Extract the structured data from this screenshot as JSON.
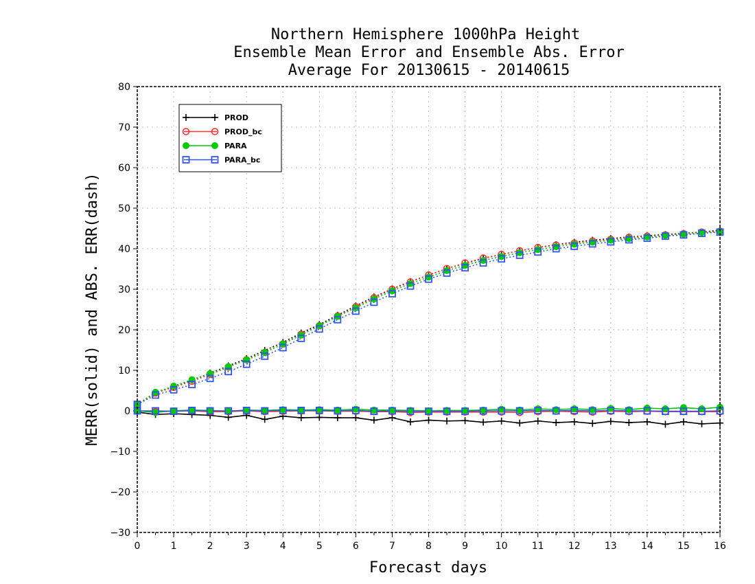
{
  "chart_data": {
    "type": "line",
    "title": [
      "Northern Hemisphere 1000hPa Height",
      "Ensemble Mean Error and Ensemble Abs. Error",
      "Average For 20130615 - 20140615"
    ],
    "xlabel": "Forecast days",
    "ylabel": "MERR(solid) and ABS. ERR(dash)",
    "xlim": [
      0,
      16
    ],
    "ylim": [
      -30,
      80
    ],
    "xticks": [
      0,
      1,
      2,
      3,
      4,
      5,
      6,
      7,
      8,
      9,
      10,
      11,
      12,
      13,
      14,
      15,
      16
    ],
    "yticks": [
      -30,
      -20,
      -10,
      0,
      10,
      20,
      30,
      40,
      50,
      60,
      70,
      80
    ],
    "grid": true,
    "legend_position": "top-left",
    "x": [
      0,
      0.5,
      1,
      1.5,
      2,
      2.5,
      3,
      3.5,
      4,
      4.5,
      5,
      5.5,
      6,
      6.5,
      7,
      7.5,
      8,
      8.5,
      9,
      9.5,
      10,
      10.5,
      11,
      11.5,
      12,
      12.5,
      13,
      13.5,
      14,
      14.5,
      15,
      15.5,
      16
    ],
    "series": [
      {
        "name": "PROD",
        "color": "#000000",
        "marker": "plus",
        "merr": [
          -0.3,
          -0.9,
          -0.7,
          -0.9,
          -1.1,
          -1.6,
          -1.1,
          -2.1,
          -1.3,
          -1.7,
          -1.6,
          -1.7,
          -1.7,
          -2.3,
          -1.7,
          -2.7,
          -2.3,
          -2.5,
          -2.4,
          -2.8,
          -2.5,
          -3.0,
          -2.5,
          -2.9,
          -2.7,
          -3.1,
          -2.6,
          -2.9,
          -2.7,
          -3.3,
          -2.7,
          -3.2,
          -3.0
        ],
        "abs_err": [
          1.6,
          4.5,
          6.0,
          7.6,
          9.3,
          11.1,
          12.9,
          14.9,
          16.9,
          19.2,
          21.3,
          23.6,
          25.9,
          28.1,
          30.1,
          31.9,
          33.5,
          35.1,
          36.4,
          37.6,
          38.6,
          39.5,
          40.3,
          41.0,
          41.6,
          42.1,
          42.5,
          42.9,
          43.2,
          43.5,
          43.8,
          44.1,
          44.6
        ]
      },
      {
        "name": "PROD_bc",
        "color": "#ff3333",
        "marker": "circle-open",
        "merr": [
          0.0,
          -0.2,
          -0.1,
          0.0,
          -0.2,
          -0.2,
          0.0,
          -0.2,
          -0.1,
          0.0,
          0.0,
          -0.1,
          -0.1,
          -0.2,
          -0.2,
          -0.4,
          -0.3,
          -0.3,
          -0.3,
          -0.3,
          -0.3,
          -0.4,
          -0.2,
          -0.1,
          -0.2,
          -0.3,
          -0.1,
          -0.2,
          -0.1,
          -0.2,
          -0.2,
          -0.2,
          -0.2
        ],
        "abs_err": [
          1.6,
          4.4,
          5.8,
          7.3,
          9.0,
          10.8,
          12.6,
          14.4,
          16.5,
          18.9,
          21.0,
          23.4,
          25.7,
          27.9,
          30.0,
          31.8,
          33.5,
          35.1,
          36.5,
          37.7,
          38.6,
          39.5,
          40.3,
          40.9,
          41.4,
          41.9,
          42.3,
          42.8,
          43.1,
          43.4,
          43.7,
          44.1,
          44.3
        ]
      },
      {
        "name": "PARA",
        "color": "#00cc00",
        "marker": "circle-filled",
        "merr": [
          0.0,
          -0.4,
          0.0,
          0.2,
          0.1,
          -0.1,
          0.2,
          0.1,
          0.3,
          0.2,
          0.3,
          0.2,
          0.4,
          0.2,
          0.2,
          0.1,
          0.0,
          0.1,
          0.1,
          0.2,
          0.4,
          0.2,
          0.5,
          0.3,
          0.5,
          0.3,
          0.6,
          0.3,
          0.7,
          0.5,
          0.8,
          0.5,
          0.9
        ],
        "abs_err": [
          1.6,
          4.6,
          6.1,
          7.7,
          9.2,
          10.9,
          12.6,
          14.4,
          16.5,
          18.7,
          21.0,
          23.3,
          25.4,
          27.6,
          29.6,
          31.4,
          33.0,
          34.6,
          35.9,
          37.1,
          38.1,
          39.0,
          39.8,
          40.5,
          41.1,
          41.6,
          42.1,
          42.5,
          42.9,
          43.3,
          43.6,
          44.0,
          44.2
        ]
      },
      {
        "name": "PARA_bc",
        "color": "#3355ee",
        "marker": "square-open",
        "merr": [
          0.0,
          0.0,
          -0.1,
          0.1,
          0.0,
          0.0,
          0.1,
          0.0,
          0.1,
          0.1,
          0.1,
          0.0,
          0.1,
          -0.1,
          0.0,
          -0.1,
          -0.1,
          -0.1,
          -0.1,
          0.0,
          0.0,
          0.0,
          0.1,
          0.0,
          0.1,
          0.0,
          0.1,
          0.0,
          0.0,
          -0.1,
          -0.1,
          -0.1,
          0.0
        ],
        "abs_err": [
          1.6,
          3.9,
          5.2,
          6.5,
          8.0,
          9.7,
          11.5,
          13.5,
          15.6,
          17.9,
          20.2,
          22.5,
          24.6,
          26.8,
          28.9,
          30.8,
          32.5,
          34.0,
          35.3,
          36.5,
          37.5,
          38.4,
          39.2,
          40.0,
          40.6,
          41.2,
          41.7,
          42.2,
          42.6,
          43.1,
          43.4,
          43.8,
          44.1
        ]
      }
    ]
  }
}
